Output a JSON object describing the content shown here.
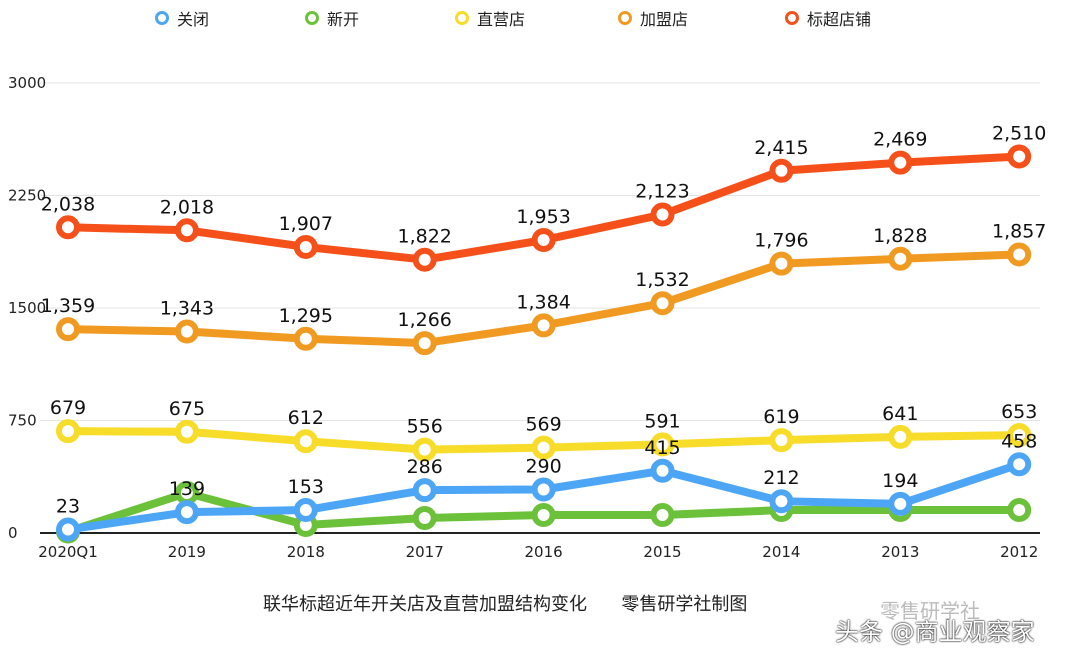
{
  "chart_data": {
    "type": "line",
    "title": "",
    "categories": [
      "2020Q1",
      "2019",
      "2018",
      "2017",
      "2016",
      "2015",
      "2014",
      "2013",
      "2012"
    ],
    "ylim": [
      0,
      3000
    ],
    "yticks": [
      0,
      750,
      1500,
      2250,
      3000
    ],
    "grid": true,
    "legend_position": "top",
    "series": [
      {
        "name": "关闭",
        "color": "#4da6f5",
        "values": [
          23,
          139,
          153,
          286,
          290,
          415,
          212,
          194,
          458
        ],
        "labels": [
          "23",
          "139",
          "153",
          "286",
          "290",
          "415",
          "212",
          "194",
          "458"
        ]
      },
      {
        "name": "新开",
        "color": "#6cc13a",
        "values": [
          10,
          267,
          53,
          100,
          120,
          120,
          153,
          153,
          153
        ],
        "labels": []
      },
      {
        "name": "直营店",
        "color": "#f7dc2a",
        "values": [
          679,
          675,
          612,
          556,
          569,
          591,
          619,
          641,
          653
        ],
        "labels": [
          "679",
          "675",
          "612",
          "556",
          "569",
          "591",
          "619",
          "641",
          "653"
        ]
      },
      {
        "name": "加盟店",
        "color": "#f09a22",
        "values": [
          1359,
          1343,
          1295,
          1266,
          1384,
          1532,
          1796,
          1828,
          1857
        ],
        "labels": [
          "1,359",
          "1,343",
          "1,295",
          "1,266",
          "1,384",
          "1,532",
          "1,796",
          "1,828",
          "1,857"
        ]
      },
      {
        "name": "标超店铺",
        "color": "#f5501a",
        "values": [
          2038,
          2018,
          1907,
          1822,
          1953,
          2123,
          2415,
          2469,
          2510
        ],
        "labels": [
          "2,038",
          "2,018",
          "1,907",
          "1,822",
          "1,953",
          "2,123",
          "2,415",
          "2,469",
          "2,510"
        ]
      }
    ]
  },
  "caption": "联华标超近年开关店及直营加盟结构变化      零售研学社制图",
  "watermark_1": "零售研学社",
  "watermark_2": "头条 @商业观察家"
}
